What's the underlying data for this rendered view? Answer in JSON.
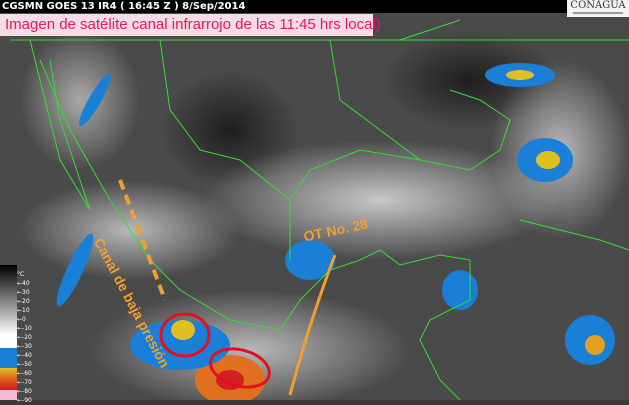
{
  "header": {
    "title": "CGSMN GOES 13 IR4 ( 16:45 Z ) 8/Sep/2014",
    "logo": "CONAGUA"
  },
  "caption": "Imagen de satélite canal infrarrojo  de las 11:45 hrs local)",
  "annotations": {
    "channel": "Canal de baja presión",
    "wave": "OT No. 28"
  },
  "scale": {
    "unit": "°C",
    "ticks": [
      "40",
      "30",
      "20",
      "10",
      "0",
      "-10",
      "-20",
      "-30",
      "-40",
      "-50",
      "-60",
      "-70",
      "-80",
      "-90"
    ]
  },
  "colors": {
    "caption_text": "#e0176b",
    "caption_bg": "#f7dce4",
    "coastline": "#33dd33",
    "annotation": "#f0a030",
    "circle": "#e01020"
  }
}
